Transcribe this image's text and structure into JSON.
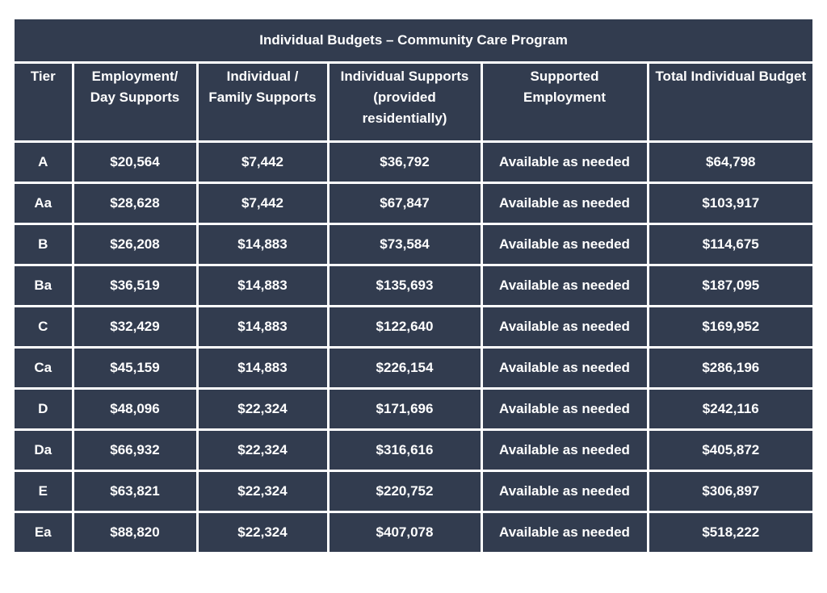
{
  "table": {
    "title": "Individual Budgets – Community Care Program",
    "headers": [
      "Tier",
      "Employment/ Day Supports",
      "Individual / Family Supports",
      "Individual Supports (provided residentially)",
      "Supported Employment",
      "Total Individual Budget"
    ],
    "rows": [
      [
        "A",
        "$20,564",
        "$7,442",
        "$36,792",
        "Available as needed",
        "$64,798"
      ],
      [
        "Aa",
        "$28,628",
        "$7,442",
        "$67,847",
        "Available as needed",
        "$103,917"
      ],
      [
        "B",
        "$26,208",
        "$14,883",
        "$73,584",
        "Available as needed",
        "$114,675"
      ],
      [
        "Ba",
        "$36,519",
        "$14,883",
        "$135,693",
        "Available as needed",
        "$187,095"
      ],
      [
        "C",
        "$32,429",
        "$14,883",
        "$122,640",
        "Available as needed",
        "$169,952"
      ],
      [
        "Ca",
        "$45,159",
        "$14,883",
        "$226,154",
        "Available as needed",
        "$286,196"
      ],
      [
        "D",
        "$48,096",
        "$22,324",
        "$171,696",
        "Available as needed",
        "$242,116"
      ],
      [
        "Da",
        "$66,932",
        "$22,324",
        "$316,616",
        "Available as needed",
        "$405,872"
      ],
      [
        "E",
        "$63,821",
        "$22,324",
        "$220,752",
        "Available as needed",
        "$306,897"
      ],
      [
        "Ea",
        "$88,820",
        "$22,324",
        "$407,078",
        "Available as needed",
        "$518,222"
      ]
    ]
  },
  "colors": {
    "cell_background": "#323c4f",
    "text": "#ffffff",
    "grid_lines": "#ffffff"
  }
}
